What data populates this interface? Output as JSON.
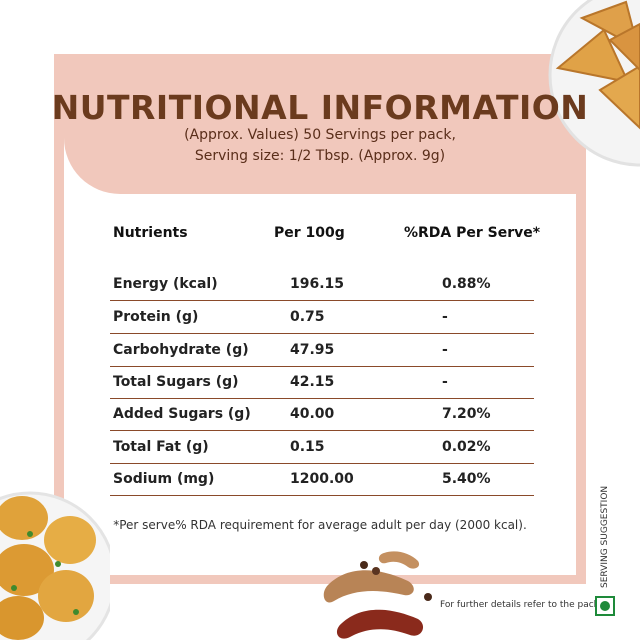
{
  "title": "NUTRITIONAL INFORMATION",
  "subtitle_line1": "(Approx. Values) 50 Servings per pack,",
  "subtitle_line2": "Serving size: 1/2 Tbsp. (Approx. 9g)",
  "table": {
    "headers": [
      "Nutrients",
      "Per 100g",
      "%RDA Per Serve*"
    ],
    "rows": [
      [
        "Energy (kcal)",
        "196.15",
        "0.88%"
      ],
      [
        "Protein (g)",
        "0.75",
        "-"
      ],
      [
        "Carbohydrate (g)",
        "47.95",
        "-"
      ],
      [
        "Total Sugars (g)",
        "42.15",
        "-"
      ],
      [
        "Added Sugars (g)",
        "40.00",
        "7.20%"
      ],
      [
        "Total Fat (g)",
        "0.15",
        "0.02%"
      ],
      [
        "Sodium (mg)",
        "1200.00",
        "5.40%"
      ]
    ]
  },
  "footnote": "*Per serve% RDA requirement for average adult per day (2000 kcal).",
  "further_details": "For further details refer to the pack.",
  "serving_suggestion": "SERVING SUGGESTION",
  "colors": {
    "panel": "#f1c8bc",
    "title": "#6b3b1e",
    "divider": "#8a4a2a",
    "veg": "#1e8a3a"
  },
  "icons": [
    "samosa-plate-image",
    "fritter-plate-image",
    "tamarind-image",
    "veg-mark-icon"
  ]
}
